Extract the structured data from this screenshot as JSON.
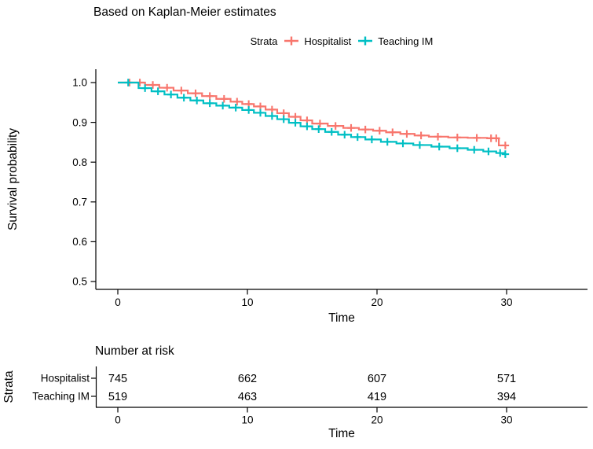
{
  "title": "Based on Kaplan-Meier estimates",
  "legend": {
    "label": "Strata",
    "items": [
      {
        "name": "Hospitalist",
        "color": "#F8766D",
        "marker": "plus"
      },
      {
        "name": "Teaching IM",
        "color": "#00BFC4",
        "marker": "plus"
      }
    ]
  },
  "chart_data": {
    "type": "line",
    "subtype": "kaplan-meier-step",
    "title": "Based on Kaplan-Meier estimates",
    "xlabel": "Time",
    "ylabel": "Survival probability",
    "xlim": [
      0,
      30
    ],
    "ylim": [
      0.5,
      1.0
    ],
    "x_ticks": [
      0,
      10,
      20,
      30
    ],
    "y_ticks": [
      "1.0",
      "0.9",
      "0.8",
      "0.7",
      "0.6",
      "0.5"
    ],
    "grid": false,
    "legend_position": "top",
    "series": [
      {
        "name": "Hospitalist",
        "color": "#F8766D",
        "steps": [
          [
            0,
            1.0
          ],
          [
            2.1,
            0.994
          ],
          [
            3.2,
            0.987
          ],
          [
            4.3,
            0.98
          ],
          [
            5.4,
            0.973
          ],
          [
            6.5,
            0.966
          ],
          [
            7.6,
            0.959
          ],
          [
            8.7,
            0.952
          ],
          [
            9.6,
            0.946
          ],
          [
            10.5,
            0.94
          ],
          [
            11.4,
            0.932
          ],
          [
            12.3,
            0.923
          ],
          [
            13.2,
            0.914
          ],
          [
            14.1,
            0.905
          ],
          [
            15.0,
            0.897
          ],
          [
            16.2,
            0.891
          ],
          [
            17.4,
            0.886
          ],
          [
            18.6,
            0.882
          ],
          [
            19.7,
            0.879
          ],
          [
            20.7,
            0.875
          ],
          [
            21.8,
            0.871
          ],
          [
            22.9,
            0.867
          ],
          [
            24.0,
            0.864
          ],
          [
            25.5,
            0.862
          ],
          [
            27.0,
            0.861
          ],
          [
            28.5,
            0.86
          ],
          [
            29.4,
            0.842
          ]
        ],
        "censor_times": [
          0.9,
          1.7,
          2.7,
          3.8,
          4.9,
          6.0,
          7.1,
          8.2,
          9.2,
          10.1,
          11.0,
          11.9,
          12.8,
          13.7,
          14.6,
          15.6,
          16.8,
          18.0,
          19.1,
          20.2,
          21.2,
          22.3,
          23.4,
          24.7,
          26.2,
          27.7,
          28.8,
          29.2,
          29.9
        ]
      },
      {
        "name": "Teaching IM",
        "color": "#00BFC4",
        "steps": [
          [
            0,
            1.0
          ],
          [
            1.6,
            0.986
          ],
          [
            2.6,
            0.978
          ],
          [
            3.6,
            0.97
          ],
          [
            4.6,
            0.962
          ],
          [
            5.6,
            0.955
          ],
          [
            6.6,
            0.948
          ],
          [
            7.6,
            0.942
          ],
          [
            8.6,
            0.937
          ],
          [
            9.6,
            0.931
          ],
          [
            10.5,
            0.924
          ],
          [
            11.4,
            0.916
          ],
          [
            12.3,
            0.908
          ],
          [
            13.2,
            0.899
          ],
          [
            14.1,
            0.89
          ],
          [
            15.0,
            0.883
          ],
          [
            16.0,
            0.876
          ],
          [
            17.0,
            0.869
          ],
          [
            18.0,
            0.863
          ],
          [
            19.1,
            0.857
          ],
          [
            20.3,
            0.851
          ],
          [
            21.5,
            0.847
          ],
          [
            22.8,
            0.843
          ],
          [
            24.2,
            0.839
          ],
          [
            25.6,
            0.835
          ],
          [
            27.0,
            0.831
          ],
          [
            28.2,
            0.827
          ],
          [
            29.2,
            0.823
          ],
          [
            29.8,
            0.82
          ]
        ],
        "censor_times": [
          0.8,
          2.1,
          3.1,
          4.1,
          5.1,
          6.1,
          7.1,
          8.1,
          9.1,
          10.1,
          11.0,
          11.9,
          12.8,
          13.7,
          14.6,
          15.5,
          16.5,
          17.5,
          18.5,
          19.6,
          20.8,
          22.0,
          23.3,
          24.8,
          26.2,
          27.5,
          28.6,
          29.5,
          29.9
        ]
      }
    ],
    "risk_table": {
      "title": "Number at risk",
      "axis_label": "Strata",
      "xlabel": "Time",
      "x_ticks": [
        0,
        10,
        20,
        30
      ],
      "rows": [
        {
          "name": "Hospitalist",
          "color": "#F8766D",
          "values": [
            "745",
            "662",
            "607",
            "571"
          ]
        },
        {
          "name": "Teaching IM",
          "color": "#00BFC4",
          "values": [
            "519",
            "463",
            "419",
            "394"
          ]
        }
      ]
    },
    "colors": {
      "background": "#FFFFFF",
      "axis": "#000000",
      "text": "#000000"
    }
  }
}
